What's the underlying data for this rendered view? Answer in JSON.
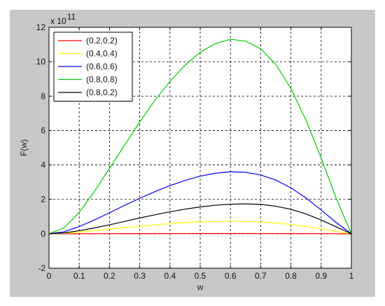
{
  "chart_data": {
    "type": "line",
    "title": "",
    "xlabel": "w",
    "ylabel": "F(w)",
    "scale_label": "x 10",
    "scale_exponent": "11",
    "xlim": [
      0,
      1
    ],
    "ylim": [
      -2,
      12
    ],
    "xticks": [
      0,
      0.1,
      0.2,
      0.3,
      0.4,
      0.5,
      0.6,
      0.7,
      0.8,
      0.9,
      1
    ],
    "xtick_labels": [
      "0",
      "0.1",
      "0.2",
      "0.3",
      "0.4",
      "0.5",
      "0.6",
      "0.7",
      "0.8",
      "0.9",
      "1"
    ],
    "yticks": [
      -2,
      0,
      2,
      4,
      6,
      8,
      10,
      12
    ],
    "ytick_labels": [
      "-2",
      "0",
      "2",
      "4",
      "6",
      "8",
      "10",
      "12"
    ],
    "grid": true,
    "legend_position": "top-left",
    "x": [
      0,
      0.05,
      0.1,
      0.15,
      0.2,
      0.25,
      0.3,
      0.35,
      0.4,
      0.45,
      0.5,
      0.55,
      0.6,
      0.65,
      0.7,
      0.75,
      0.8,
      0.85,
      0.9,
      0.95,
      1
    ],
    "series": [
      {
        "name": "(0.2,0.2)",
        "color": "#ff0000",
        "values": [
          0,
          0.001,
          0.003,
          0.005,
          0.007,
          0.008,
          0.01,
          0.011,
          0.012,
          0.013,
          0.014,
          0.014,
          0.014,
          0.014,
          0.013,
          0.012,
          0.011,
          0.009,
          0.006,
          0.003,
          0
        ]
      },
      {
        "name": "(0.4,0.4)",
        "color": "#ffff00",
        "values": [
          0,
          0.03,
          0.1,
          0.18,
          0.27,
          0.36,
          0.44,
          0.52,
          0.59,
          0.65,
          0.69,
          0.72,
          0.73,
          0.72,
          0.69,
          0.63,
          0.54,
          0.42,
          0.28,
          0.14,
          0
        ]
      },
      {
        "name": "(0.6,0.6)",
        "color": "#0000ff",
        "values": [
          0,
          0.12,
          0.42,
          0.8,
          1.22,
          1.65,
          2.06,
          2.45,
          2.8,
          3.1,
          3.35,
          3.52,
          3.6,
          3.57,
          3.42,
          3.12,
          2.67,
          2.08,
          1.38,
          0.65,
          0
        ]
      },
      {
        "name": "(0.8,0.8)",
        "color": "#00cc00",
        "values": [
          0,
          0.35,
          1.25,
          2.45,
          3.8,
          5.15,
          6.5,
          7.75,
          8.85,
          9.8,
          10.55,
          11.05,
          11.3,
          11.2,
          10.75,
          9.85,
          8.45,
          6.6,
          4.4,
          2.05,
          0
        ]
      },
      {
        "name": "(0.8,0.2)",
        "color": "#000000",
        "values": [
          0,
          0.05,
          0.18,
          0.34,
          0.52,
          0.72,
          0.92,
          1.1,
          1.28,
          1.43,
          1.56,
          1.66,
          1.72,
          1.74,
          1.71,
          1.6,
          1.42,
          1.15,
          0.8,
          0.4,
          0
        ]
      }
    ]
  }
}
